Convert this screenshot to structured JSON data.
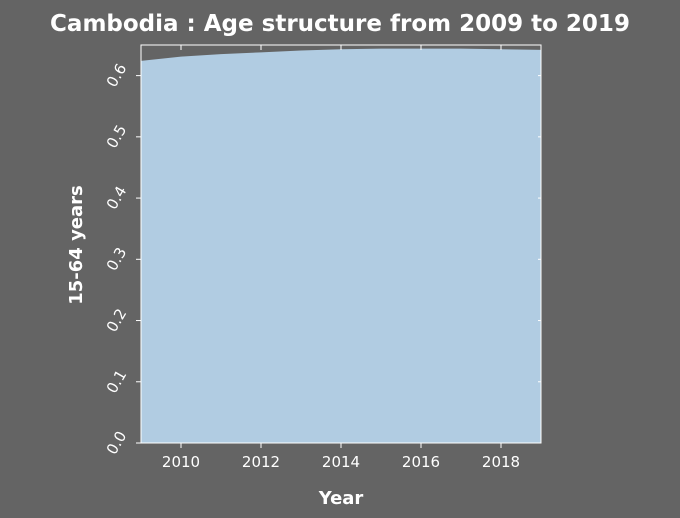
{
  "chart_data": {
    "type": "area",
    "title": "Cambodia : Age structure from 2009 to 2019",
    "xlabel": "Year",
    "ylabel": "15-64 years",
    "xlim": [
      2009,
      2019
    ],
    "ylim": [
      0.0,
      0.65
    ],
    "x_ticks": [
      2010,
      2012,
      2014,
      2016,
      2018
    ],
    "y_ticks": [
      "0.0",
      "0.1",
      "0.2",
      "0.3",
      "0.4",
      "0.5",
      "0.6"
    ],
    "grid": false,
    "series": [
      {
        "x": [
          2009,
          2010,
          2011,
          2012,
          2013,
          2014,
          2015,
          2016,
          2017,
          2018,
          2019
        ],
        "values": [
          0.624,
          0.631,
          0.635,
          0.638,
          0.641,
          0.643,
          0.644,
          0.644,
          0.644,
          0.643,
          0.642
        ]
      }
    ],
    "colors": {
      "background": "#646464",
      "area": "#b1cce2",
      "text": "#ffffff"
    }
  }
}
